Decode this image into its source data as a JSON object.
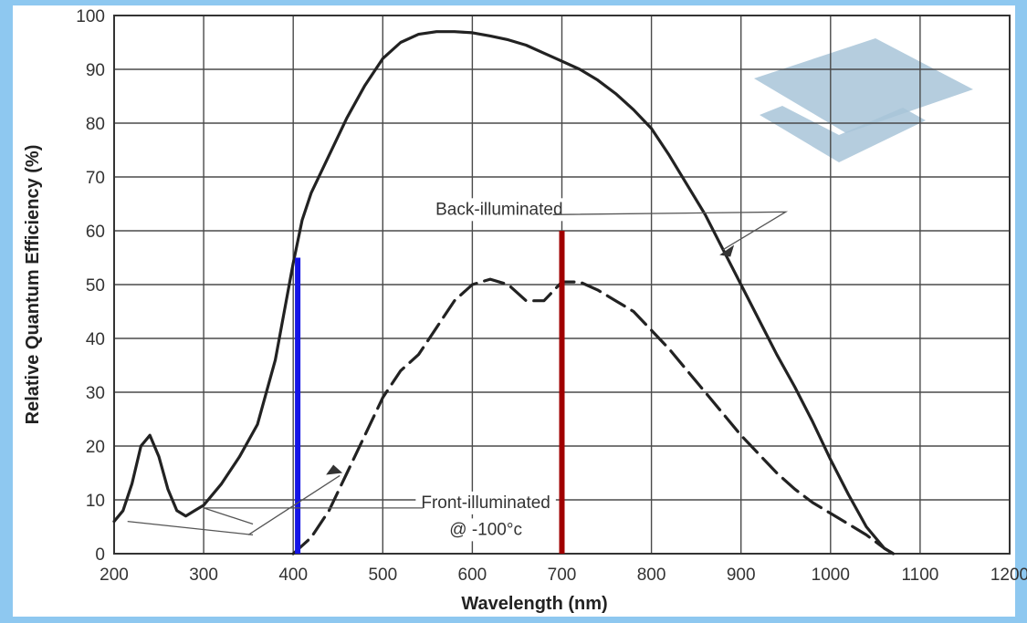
{
  "chart_data": {
    "type": "line",
    "title": "",
    "xlabel": "Wavelength (nm)",
    "ylabel": "Relative Quantum Efficiency (%)",
    "xlim": [
      200,
      1200
    ],
    "ylim": [
      0,
      100
    ],
    "grid": true,
    "x_ticks": [
      200,
      300,
      400,
      500,
      600,
      700,
      800,
      900,
      1000,
      1100,
      1200
    ],
    "x_tick_labels": [
      "200",
      "300",
      "400",
      "500",
      "600",
      "700",
      "800",
      "900",
      "1000",
      "1100",
      "1200"
    ],
    "y_ticks": [
      0,
      10,
      20,
      30,
      40,
      50,
      60,
      70,
      80,
      90,
      100
    ],
    "y_tick_labels": [
      "0",
      "10",
      "20",
      "30",
      "40",
      "50",
      "60",
      "70",
      "80",
      "90",
      "100"
    ],
    "series": [
      {
        "label": "Back-illuminated",
        "style": "solid",
        "color": "#222222",
        "x": [
          200,
          210,
          220,
          230,
          240,
          250,
          260,
          270,
          280,
          290,
          300,
          320,
          340,
          360,
          380,
          390,
          400,
          410,
          420,
          440,
          460,
          480,
          500,
          520,
          540,
          560,
          580,
          600,
          620,
          640,
          660,
          680,
          700,
          720,
          740,
          760,
          780,
          800,
          820,
          840,
          860,
          880,
          900,
          920,
          940,
          960,
          980,
          1000,
          1020,
          1040,
          1060,
          1070
        ],
        "y": [
          6,
          8,
          13,
          20,
          22,
          18,
          12,
          8,
          7,
          8,
          9,
          13,
          18,
          24,
          36,
          45,
          54,
          62,
          67,
          74,
          81,
          87,
          92,
          95,
          96.5,
          97,
          97,
          96.8,
          96.2,
          95.5,
          94.5,
          93,
          91.5,
          90,
          88,
          85.5,
          82.5,
          79,
          74,
          68.5,
          63,
          56.5,
          50,
          43.5,
          37,
          31,
          24.5,
          17.5,
          11,
          5,
          1,
          0
        ]
      },
      {
        "label": "Front-illuminated @ -100°c",
        "style": "dashed",
        "color": "#222222",
        "x": [
          400,
          420,
          440,
          460,
          480,
          500,
          520,
          540,
          560,
          580,
          600,
          620,
          640,
          660,
          680,
          700,
          720,
          740,
          760,
          780,
          800,
          820,
          840,
          860,
          880,
          900,
          920,
          940,
          960,
          980,
          1000,
          1020,
          1040,
          1060,
          1070
        ],
        "y": [
          0,
          3,
          8,
          15,
          22,
          29,
          34,
          37,
          42,
          47,
          50,
          51,
          50,
          47,
          47,
          50.5,
          50.5,
          49,
          47,
          45,
          41.5,
          38,
          34,
          30,
          26,
          22,
          18.5,
          15,
          12,
          9.5,
          7.5,
          5.5,
          3.5,
          1,
          0
        ]
      }
    ],
    "vertical_markers": [
      {
        "x": 405,
        "y_top": 55,
        "color": "#1414e6"
      },
      {
        "x": 700,
        "y_top": 60,
        "color": "#a00000"
      }
    ],
    "annotations": [
      {
        "text": "Back-illuminated",
        "x": 630,
        "y": 63
      },
      {
        "text": "Front-illuminated",
        "x": 615,
        "y": 8.5
      },
      {
        "text": "@ -100°c",
        "x": 615,
        "y": 3.5
      }
    ]
  },
  "watermark": {
    "icon": "layered-planes-logo-icon",
    "color": "#a8c4d8"
  }
}
